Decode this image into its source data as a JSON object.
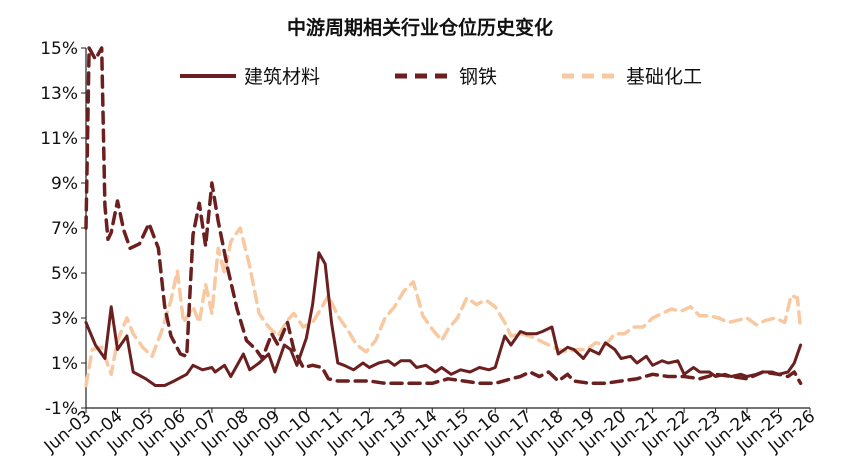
{
  "chart_data": {
    "type": "line",
    "title": "中游周期相关行业仓位历史变化",
    "ylim": [
      -1,
      15
    ],
    "y_ticks": [
      "15%",
      "13%",
      "11%",
      "9%",
      "7%",
      "5%",
      "3%",
      "1%",
      "-1%"
    ],
    "y_tick_values": [
      15,
      13,
      11,
      9,
      7,
      5,
      3,
      1,
      -1
    ],
    "x_ticks": [
      "Jun-03",
      "Jun-04",
      "Jun-05",
      "Jun-06",
      "Jun-07",
      "Jun-08",
      "Jun-09",
      "Jun-10",
      "Jun-11",
      "Jun-12",
      "Jun-13",
      "Jun-14",
      "Jun-15",
      "Jun-16",
      "Jun-17",
      "Jun-18",
      "Jun-19",
      "Jun-20",
      "Jun-21",
      "Jun-22",
      "Jun-23",
      "Jun-24",
      "Jun-25",
      "Jun-26"
    ],
    "x_range": [
      2003.5,
      2026.5
    ],
    "legend": "top",
    "grid": false,
    "series": [
      {
        "name": "建筑材料",
        "color": "#6b1f1f",
        "style": "solid",
        "points": [
          [
            2003.5,
            2.8
          ],
          [
            2003.8,
            1.8
          ],
          [
            2004.1,
            1.2
          ],
          [
            2004.3,
            3.5
          ],
          [
            2004.5,
            1.6
          ],
          [
            2004.8,
            2.2
          ],
          [
            2005.0,
            0.6
          ],
          [
            2005.4,
            0.3
          ],
          [
            2005.7,
            0.0
          ],
          [
            2006.0,
            0.0
          ],
          [
            2006.3,
            0.2
          ],
          [
            2006.7,
            0.5
          ],
          [
            2006.9,
            0.9
          ],
          [
            2007.2,
            0.7
          ],
          [
            2007.5,
            0.8
          ],
          [
            2007.6,
            0.6
          ],
          [
            2007.9,
            0.9
          ],
          [
            2008.1,
            0.4
          ],
          [
            2008.5,
            1.4
          ],
          [
            2008.7,
            0.7
          ],
          [
            2009.0,
            1.0
          ],
          [
            2009.3,
            1.4
          ],
          [
            2009.5,
            0.6
          ],
          [
            2009.8,
            1.8
          ],
          [
            2010.0,
            1.6
          ],
          [
            2010.2,
            0.9
          ],
          [
            2010.5,
            2.1
          ],
          [
            2010.7,
            3.6
          ],
          [
            2010.9,
            5.9
          ],
          [
            2011.1,
            5.4
          ],
          [
            2011.3,
            2.8
          ],
          [
            2011.5,
            1.0
          ],
          [
            2011.7,
            0.9
          ],
          [
            2012.0,
            0.7
          ],
          [
            2012.3,
            1.0
          ],
          [
            2012.5,
            0.8
          ],
          [
            2012.8,
            1.0
          ],
          [
            2013.1,
            1.1
          ],
          [
            2013.3,
            0.9
          ],
          [
            2013.5,
            1.1
          ],
          [
            2013.8,
            1.1
          ],
          [
            2014.0,
            0.8
          ],
          [
            2014.3,
            0.9
          ],
          [
            2014.6,
            0.6
          ],
          [
            2014.8,
            0.8
          ],
          [
            2015.1,
            0.5
          ],
          [
            2015.4,
            0.7
          ],
          [
            2015.7,
            0.6
          ],
          [
            2016.0,
            0.8
          ],
          [
            2016.3,
            0.7
          ],
          [
            2016.5,
            0.8
          ],
          [
            2016.8,
            2.2
          ],
          [
            2017.0,
            1.8
          ],
          [
            2017.3,
            2.4
          ],
          [
            2017.5,
            2.3
          ],
          [
            2017.8,
            2.3
          ],
          [
            2018.0,
            2.4
          ],
          [
            2018.3,
            2.6
          ],
          [
            2018.5,
            1.4
          ],
          [
            2018.8,
            1.7
          ],
          [
            2019.0,
            1.6
          ],
          [
            2019.3,
            1.2
          ],
          [
            2019.5,
            1.6
          ],
          [
            2019.8,
            1.4
          ],
          [
            2020.0,
            1.9
          ],
          [
            2020.3,
            1.6
          ],
          [
            2020.5,
            1.2
          ],
          [
            2020.8,
            1.3
          ],
          [
            2021.0,
            1.0
          ],
          [
            2021.3,
            1.3
          ],
          [
            2021.5,
            0.9
          ],
          [
            2021.8,
            1.1
          ],
          [
            2022.0,
            1.0
          ],
          [
            2022.3,
            1.1
          ],
          [
            2022.5,
            0.5
          ],
          [
            2022.8,
            0.8
          ],
          [
            2023.0,
            0.6
          ],
          [
            2023.3,
            0.6
          ],
          [
            2023.5,
            0.4
          ],
          [
            2023.8,
            0.5
          ],
          [
            2024.0,
            0.4
          ],
          [
            2024.3,
            0.5
          ],
          [
            2024.5,
            0.4
          ],
          [
            2024.8,
            0.5
          ],
          [
            2025.0,
            0.6
          ],
          [
            2025.3,
            0.6
          ],
          [
            2025.5,
            0.5
          ],
          [
            2025.8,
            0.6
          ],
          [
            2026.0,
            1.0
          ],
          [
            2026.2,
            1.8
          ]
        ]
      },
      {
        "name": "钢铁",
        "color": "#6b1f1f",
        "style": "dashed",
        "points": [
          [
            2003.5,
            7.0
          ],
          [
            2003.6,
            15.0
          ],
          [
            2003.8,
            14.5
          ],
          [
            2004.0,
            15.0
          ],
          [
            2004.1,
            8.0
          ],
          [
            2004.2,
            6.5
          ],
          [
            2004.3,
            6.8
          ],
          [
            2004.5,
            8.2
          ],
          [
            2004.7,
            6.9
          ],
          [
            2004.9,
            6.1
          ],
          [
            2005.2,
            6.3
          ],
          [
            2005.5,
            7.2
          ],
          [
            2005.8,
            6.1
          ],
          [
            2006.0,
            3.5
          ],
          [
            2006.2,
            2.2
          ],
          [
            2006.5,
            1.4
          ],
          [
            2006.7,
            1.3
          ],
          [
            2006.9,
            6.7
          ],
          [
            2007.1,
            8.1
          ],
          [
            2007.3,
            6.2
          ],
          [
            2007.5,
            9.0
          ],
          [
            2007.7,
            7.3
          ],
          [
            2008.0,
            5.2
          ],
          [
            2008.3,
            3.4
          ],
          [
            2008.6,
            2.0
          ],
          [
            2008.9,
            1.6
          ],
          [
            2009.1,
            1.2
          ],
          [
            2009.4,
            2.3
          ],
          [
            2009.6,
            1.8
          ],
          [
            2009.9,
            2.8
          ],
          [
            2010.1,
            1.6
          ],
          [
            2010.4,
            0.8
          ],
          [
            2010.7,
            0.9
          ],
          [
            2011.0,
            0.8
          ],
          [
            2011.2,
            0.3
          ],
          [
            2011.5,
            0.2
          ],
          [
            2012.0,
            0.2
          ],
          [
            2012.5,
            0.2
          ],
          [
            2013.0,
            0.1
          ],
          [
            2013.5,
            0.1
          ],
          [
            2014.0,
            0.1
          ],
          [
            2014.5,
            0.1
          ],
          [
            2015.0,
            0.3
          ],
          [
            2015.5,
            0.2
          ],
          [
            2016.0,
            0.1
          ],
          [
            2016.5,
            0.1
          ],
          [
            2017.0,
            0.3
          ],
          [
            2017.3,
            0.4
          ],
          [
            2017.6,
            0.6
          ],
          [
            2017.9,
            0.4
          ],
          [
            2018.2,
            0.6
          ],
          [
            2018.5,
            0.2
          ],
          [
            2018.8,
            0.5
          ],
          [
            2019.0,
            0.2
          ],
          [
            2019.5,
            0.1
          ],
          [
            2020.0,
            0.1
          ],
          [
            2020.5,
            0.2
          ],
          [
            2021.0,
            0.3
          ],
          [
            2021.5,
            0.5
          ],
          [
            2022.0,
            0.4
          ],
          [
            2022.5,
            0.4
          ],
          [
            2023.0,
            0.3
          ],
          [
            2023.5,
            0.5
          ],
          [
            2024.0,
            0.4
          ],
          [
            2024.5,
            0.3
          ],
          [
            2025.0,
            0.6
          ],
          [
            2025.5,
            0.5
          ],
          [
            2025.8,
            0.4
          ],
          [
            2026.0,
            0.6
          ],
          [
            2026.2,
            0.1
          ]
        ]
      },
      {
        "name": "基础化工",
        "color": "#f8c9a0",
        "style": "dashed",
        "points": [
          [
            2003.5,
            0.0
          ],
          [
            2003.7,
            1.6
          ],
          [
            2004.0,
            1.7
          ],
          [
            2004.3,
            0.5
          ],
          [
            2004.5,
            2.0
          ],
          [
            2004.8,
            3.0
          ],
          [
            2005.0,
            2.3
          ],
          [
            2005.3,
            1.7
          ],
          [
            2005.6,
            1.3
          ],
          [
            2005.9,
            2.4
          ],
          [
            2006.2,
            3.8
          ],
          [
            2006.4,
            5.1
          ],
          [
            2006.6,
            2.8
          ],
          [
            2006.9,
            3.5
          ],
          [
            2007.1,
            2.8
          ],
          [
            2007.3,
            4.5
          ],
          [
            2007.5,
            3.2
          ],
          [
            2007.7,
            6.1
          ],
          [
            2007.9,
            5.0
          ],
          [
            2008.1,
            6.4
          ],
          [
            2008.4,
            7.0
          ],
          [
            2008.7,
            5.3
          ],
          [
            2009.0,
            3.2
          ],
          [
            2009.3,
            2.6
          ],
          [
            2009.6,
            2.2
          ],
          [
            2009.9,
            2.9
          ],
          [
            2010.1,
            3.2
          ],
          [
            2010.4,
            2.6
          ],
          [
            2010.7,
            2.8
          ],
          [
            2011.0,
            3.5
          ],
          [
            2011.2,
            4.0
          ],
          [
            2011.5,
            3.1
          ],
          [
            2011.8,
            2.5
          ],
          [
            2012.1,
            1.8
          ],
          [
            2012.4,
            1.5
          ],
          [
            2012.7,
            2.0
          ],
          [
            2013.0,
            3.0
          ],
          [
            2013.3,
            3.5
          ],
          [
            2013.6,
            4.2
          ],
          [
            2013.9,
            4.6
          ],
          [
            2014.2,
            3.1
          ],
          [
            2014.5,
            2.5
          ],
          [
            2014.8,
            2.0
          ],
          [
            2015.0,
            2.5
          ],
          [
            2015.3,
            3.0
          ],
          [
            2015.6,
            3.9
          ],
          [
            2015.9,
            3.6
          ],
          [
            2016.2,
            3.8
          ],
          [
            2016.5,
            3.5
          ],
          [
            2016.8,
            2.8
          ],
          [
            2017.0,
            2.2
          ],
          [
            2017.3,
            2.3
          ],
          [
            2017.6,
            2.2
          ],
          [
            2017.9,
            2.0
          ],
          [
            2018.2,
            1.8
          ],
          [
            2018.5,
            1.6
          ],
          [
            2018.8,
            1.5
          ],
          [
            2019.1,
            1.6
          ],
          [
            2019.4,
            1.6
          ],
          [
            2019.7,
            1.9
          ],
          [
            2020.0,
            1.8
          ],
          [
            2020.3,
            2.3
          ],
          [
            2020.6,
            2.3
          ],
          [
            2020.9,
            2.6
          ],
          [
            2021.2,
            2.6
          ],
          [
            2021.5,
            3.0
          ],
          [
            2021.8,
            3.2
          ],
          [
            2022.1,
            3.4
          ],
          [
            2022.4,
            3.3
          ],
          [
            2022.7,
            3.5
          ],
          [
            2023.0,
            3.1
          ],
          [
            2023.3,
            3.1
          ],
          [
            2023.6,
            3.0
          ],
          [
            2023.9,
            2.8
          ],
          [
            2024.2,
            2.9
          ],
          [
            2024.5,
            3.0
          ],
          [
            2024.8,
            2.7
          ],
          [
            2025.1,
            2.9
          ],
          [
            2025.4,
            3.0
          ],
          [
            2025.7,
            2.8
          ],
          [
            2025.9,
            4.0
          ],
          [
            2026.1,
            3.9
          ],
          [
            2026.2,
            2.5
          ]
        ]
      }
    ]
  }
}
